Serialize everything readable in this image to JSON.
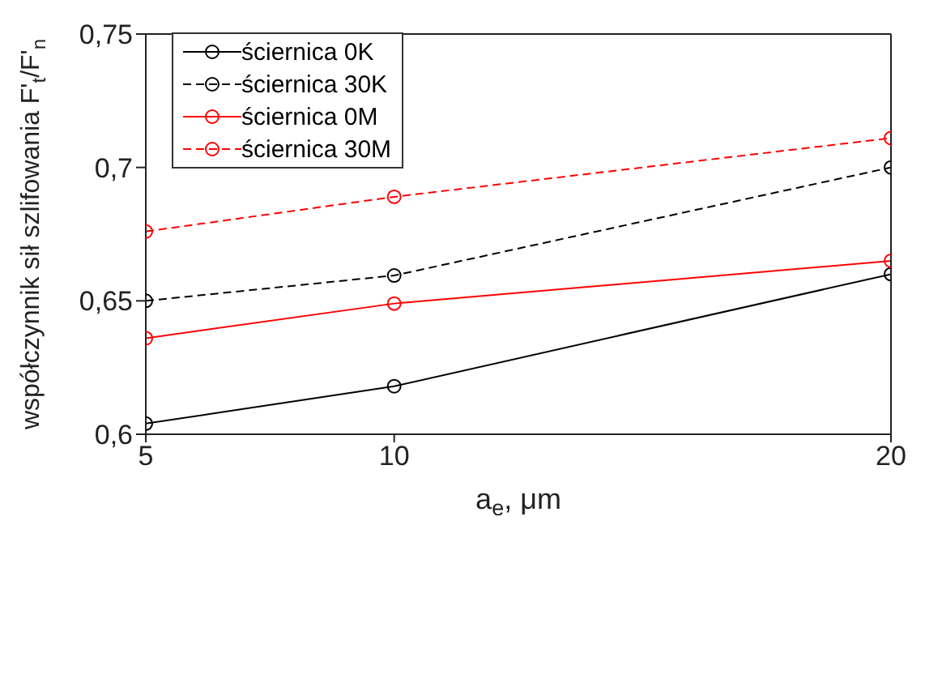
{
  "chart_data": {
    "type": "line",
    "xlabel": "a$_{e}$, μm",
    "ylabel": "współczynnik sił szlifowania F'$_{t}$/F'$_{n}$",
    "x": [
      5,
      10,
      20
    ],
    "series": [
      {
        "name": "ściernica 0K",
        "color": "#000000",
        "values": [
          0.604,
          0.618,
          0.66
        ],
        "line_style": "solid"
      },
      {
        "name": "ściernica 30K",
        "color": "#000000",
        "values": [
          0.65,
          0.6595,
          0.7
        ],
        "line_style": "dashed"
      },
      {
        "name": "ściernica 0M",
        "color": "#ff0000",
        "values": [
          0.636,
          0.649,
          0.665
        ],
        "line_style": "solid"
      },
      {
        "name": "ściernica 30M",
        "color": "#ff0000",
        "values": [
          0.676,
          0.689,
          0.711
        ],
        "line_style": "dashed"
      }
    ],
    "xlim": [
      5,
      20
    ],
    "xticks": [
      5,
      10,
      20
    ],
    "ylim": [
      0.6,
      0.75
    ],
    "yticks": [
      {
        "value": 0.6,
        "label": "0,6"
      },
      {
        "value": 0.65,
        "label": "0,65"
      },
      {
        "value": 0.7,
        "label": "0,7"
      },
      {
        "value": 0.75,
        "label": "0,75"
      }
    ],
    "marker": "circle",
    "grid": false,
    "legend": "top left"
  }
}
